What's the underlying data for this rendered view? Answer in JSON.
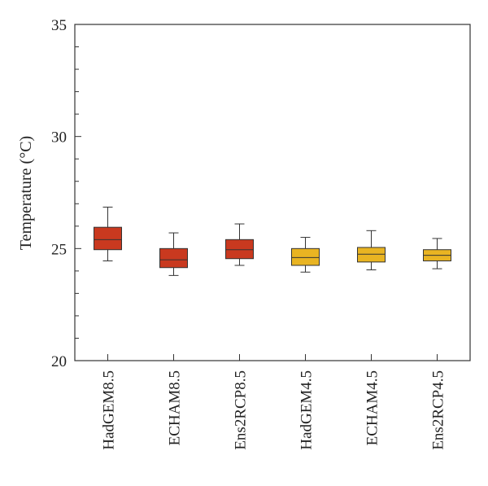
{
  "chart_data": {
    "type": "box",
    "title": "",
    "xlabel": "",
    "ylabel": "Temperature (°C)",
    "ylim": [
      20,
      35
    ],
    "yticks": [
      20,
      25,
      30,
      35
    ],
    "minor_tick_step": 1,
    "grid": false,
    "categories": [
      "HadGEM8.5",
      "ECHAM8.5",
      "Ens2RCP8.5",
      "HadGEM4.5",
      "ECHAM4.5",
      "Ens2RCP4.5"
    ],
    "boxes": [
      {
        "min": 24.45,
        "q1": 24.95,
        "median": 25.4,
        "q3": 25.95,
        "max": 26.85,
        "color": "#c9391f"
      },
      {
        "min": 23.8,
        "q1": 24.15,
        "median": 24.5,
        "q3": 25.0,
        "max": 25.7,
        "color": "#c9391f"
      },
      {
        "min": 24.25,
        "q1": 24.55,
        "median": 24.95,
        "q3": 25.4,
        "max": 26.1,
        "color": "#c9391f"
      },
      {
        "min": 23.95,
        "q1": 24.25,
        "median": 24.6,
        "q3": 25.0,
        "max": 25.5,
        "color": "#e9b422"
      },
      {
        "min": 24.05,
        "q1": 24.4,
        "median": 24.75,
        "q3": 25.05,
        "max": 25.8,
        "color": "#e9b422"
      },
      {
        "min": 24.1,
        "q1": 24.45,
        "median": 24.7,
        "q3": 24.95,
        "max": 25.45,
        "color": "#e9b422"
      }
    ]
  }
}
